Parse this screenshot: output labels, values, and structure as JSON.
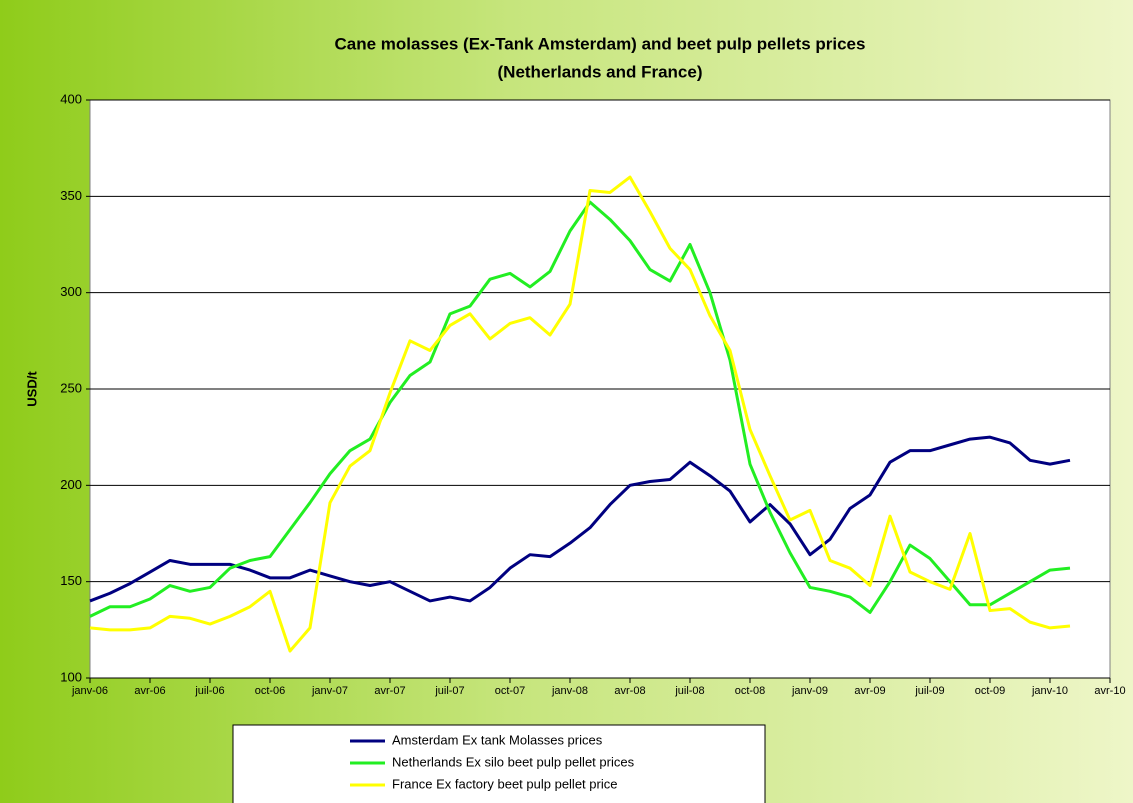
{
  "chart_data": {
    "type": "line",
    "title": [
      "Cane molasses (Ex-Tank Amsterdam) and beet pulp pellets prices",
      "(Netherlands and France)"
    ],
    "y_label": "USD/t",
    "categories": [
      "janv-06",
      null,
      null,
      "avr-06",
      null,
      null,
      "juil-06",
      null,
      null,
      "oct-06",
      null,
      null,
      "janv-07",
      null,
      null,
      "avr-07",
      null,
      null,
      "juil-07",
      null,
      null,
      "oct-07",
      null,
      null,
      "janv-08",
      null,
      null,
      "avr-08",
      null,
      null,
      "juil-08",
      null,
      null,
      "oct-08",
      null,
      null,
      "janv-09",
      null,
      null,
      "avr-09",
      null,
      null,
      "juil-09",
      null,
      null,
      "oct-09",
      null,
      null,
      "janv-10",
      null,
      null,
      "avr-10"
    ],
    "series": [
      {
        "name": "Amsterdam Ex tank Molasses prices",
        "color": "#000080",
        "values": [
          140,
          144,
          149,
          155,
          161,
          159,
          159,
          159,
          156,
          152,
          152,
          156,
          153,
          150,
          148,
          150,
          145,
          140,
          142,
          140,
          147,
          157,
          164,
          163,
          170,
          178,
          190,
          200,
          202,
          203,
          212,
          205,
          197,
          181,
          190,
          180,
          164,
          172,
          188,
          195,
          212,
          218,
          218,
          221,
          224,
          225,
          222,
          213,
          211,
          213,
          null,
          null
        ]
      },
      {
        "name": "Netherlands Ex silo beet pulp pellet  prices",
        "color": "#22ee22",
        "values": [
          132,
          137,
          137,
          141,
          148,
          145,
          147,
          157,
          161,
          163,
          177,
          191,
          206,
          218,
          224,
          243,
          257,
          264,
          289,
          293,
          307,
          310,
          303,
          311,
          332,
          347,
          338,
          327,
          312,
          306,
          325,
          300,
          265,
          211,
          186,
          165,
          147,
          145,
          142,
          134,
          150,
          169,
          162,
          150,
          138,
          138,
          144,
          150,
          156,
          157,
          null,
          null
        ]
      },
      {
        "name": "France Ex factory beet pulp pellet price",
        "color": "#ffff00",
        "values": [
          126,
          125,
          125,
          126,
          132,
          131,
          128,
          132,
          137,
          145,
          114,
          126,
          191,
          210,
          218,
          248,
          275,
          270,
          283,
          289,
          276,
          284,
          287,
          278,
          294,
          353,
          352,
          360,
          342,
          323,
          312,
          288,
          270,
          229,
          205,
          182,
          187,
          161,
          157,
          148,
          184,
          155,
          150,
          146,
          175,
          135,
          136,
          129,
          126,
          127,
          null,
          null
        ]
      }
    ],
    "ylim": [
      100,
      400
    ],
    "yticks": [
      100,
      150,
      200,
      250,
      300,
      350,
      400
    ],
    "grid": true,
    "legend": "bottom"
  }
}
